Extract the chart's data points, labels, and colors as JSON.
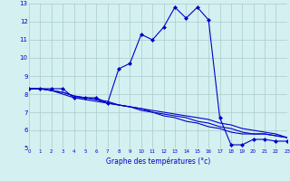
{
  "title": "Graphe des températures (°c)",
  "background_color": "#d4f0f0",
  "line_color": "#0000cc",
  "grid_color": "#aacccc",
  "ylim": [
    5,
    13
  ],
  "xlim": [
    0,
    23
  ],
  "yticks": [
    5,
    6,
    7,
    8,
    9,
    10,
    11,
    12,
    13
  ],
  "xticks": [
    0,
    1,
    2,
    3,
    4,
    5,
    6,
    7,
    8,
    9,
    10,
    11,
    12,
    13,
    14,
    15,
    16,
    17,
    18,
    19,
    20,
    21,
    22,
    23
  ],
  "series": [
    {
      "x": [
        0,
        1,
        2,
        3,
        4,
        5,
        6,
        7,
        8,
        9,
        10,
        11,
        12,
        13,
        14,
        15,
        16,
        17,
        18,
        19,
        20,
        21,
        22,
        23
      ],
      "y": [
        8.3,
        8.3,
        8.3,
        8.3,
        7.8,
        7.8,
        7.8,
        7.5,
        9.4,
        9.7,
        11.3,
        11.0,
        11.7,
        12.8,
        12.2,
        12.8,
        12.1,
        6.7,
        5.2,
        5.2,
        5.5,
        5.5,
        5.4,
        5.4
      ],
      "marker": "D",
      "markersize": 2.5,
      "linestyle": "-"
    },
    {
      "x": [
        0,
        1,
        2,
        3,
        4,
        5,
        6,
        7,
        8,
        9,
        10,
        11,
        12,
        13,
        14,
        15,
        16,
        17,
        18,
        19,
        20,
        21,
        22,
        23
      ],
      "y": [
        8.3,
        8.3,
        8.2,
        8.1,
        7.9,
        7.8,
        7.7,
        7.5,
        7.4,
        7.3,
        7.2,
        7.1,
        7.0,
        6.9,
        6.8,
        6.7,
        6.6,
        6.4,
        6.3,
        6.1,
        6.0,
        5.9,
        5.8,
        5.6
      ],
      "marker": "",
      "markersize": 0,
      "linestyle": "-"
    },
    {
      "x": [
        0,
        1,
        2,
        3,
        4,
        5,
        6,
        7,
        8,
        9,
        10,
        11,
        12,
        13,
        14,
        15,
        16,
        17,
        18,
        19,
        20,
        21,
        22,
        23
      ],
      "y": [
        8.3,
        8.3,
        8.2,
        8.0,
        7.8,
        7.7,
        7.6,
        7.5,
        7.4,
        7.3,
        7.2,
        7.0,
        6.9,
        6.8,
        6.7,
        6.5,
        6.4,
        6.2,
        6.1,
        5.9,
        5.8,
        5.8,
        5.7,
        5.6
      ],
      "marker": "",
      "markersize": 0,
      "linestyle": "-"
    },
    {
      "x": [
        0,
        1,
        2,
        3,
        4,
        5,
        6,
        7,
        8,
        9,
        10,
        11,
        12,
        13,
        14,
        15,
        16,
        17,
        18,
        19,
        20,
        21,
        22,
        23
      ],
      "y": [
        8.3,
        8.3,
        8.2,
        8.1,
        7.9,
        7.8,
        7.7,
        7.6,
        7.4,
        7.3,
        7.1,
        7.0,
        6.8,
        6.7,
        6.5,
        6.4,
        6.2,
        6.1,
        5.9,
        5.8,
        5.8,
        5.8,
        5.7,
        5.6
      ],
      "marker": "",
      "markersize": 0,
      "linestyle": "-"
    }
  ]
}
